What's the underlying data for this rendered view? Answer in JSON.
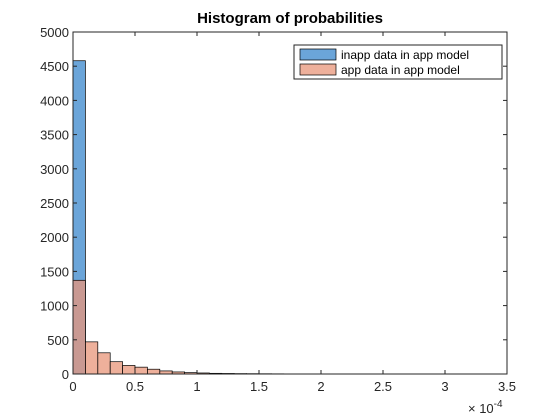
{
  "chart_data": {
    "type": "bar",
    "title": "Histogram of probabilities",
    "xlabel": "",
    "ylabel": "",
    "x_scale_exponent": "-4",
    "x_scale_exponent_label": "× 10",
    "xlim": [
      0,
      3.5
    ],
    "ylim": [
      0,
      5000
    ],
    "xticks": [
      "0",
      "0.5",
      "1",
      "1.5",
      "2",
      "2.5",
      "3",
      "3.5"
    ],
    "yticks": [
      "0",
      "500",
      "1000",
      "1500",
      "2000",
      "2500",
      "3000",
      "3500",
      "4000",
      "4500",
      "5000"
    ],
    "bin_width": 0.1,
    "bin_starts": [
      0,
      0.1,
      0.2,
      0.3,
      0.4,
      0.5,
      0.6,
      0.7,
      0.8,
      0.9,
      1.0,
      1.1,
      1.2,
      1.3,
      1.4,
      1.5,
      1.6
    ],
    "grid": false,
    "legend_position": "top-right",
    "series": [
      {
        "name": "inapp data in app model",
        "color": "#5b9bd5",
        "face_alpha": 0.9,
        "values": [
          4580,
          0,
          0,
          0,
          0,
          0,
          0,
          0,
          0,
          0,
          0,
          0,
          0,
          0,
          0,
          0,
          0
        ]
      },
      {
        "name": "app data in app model",
        "color": "#e8967a",
        "face_alpha": 0.75,
        "values": [
          1370,
          470,
          310,
          180,
          125,
          100,
          70,
          45,
          30,
          20,
          15,
          10,
          8,
          6,
          5,
          4,
          3
        ]
      }
    ]
  }
}
